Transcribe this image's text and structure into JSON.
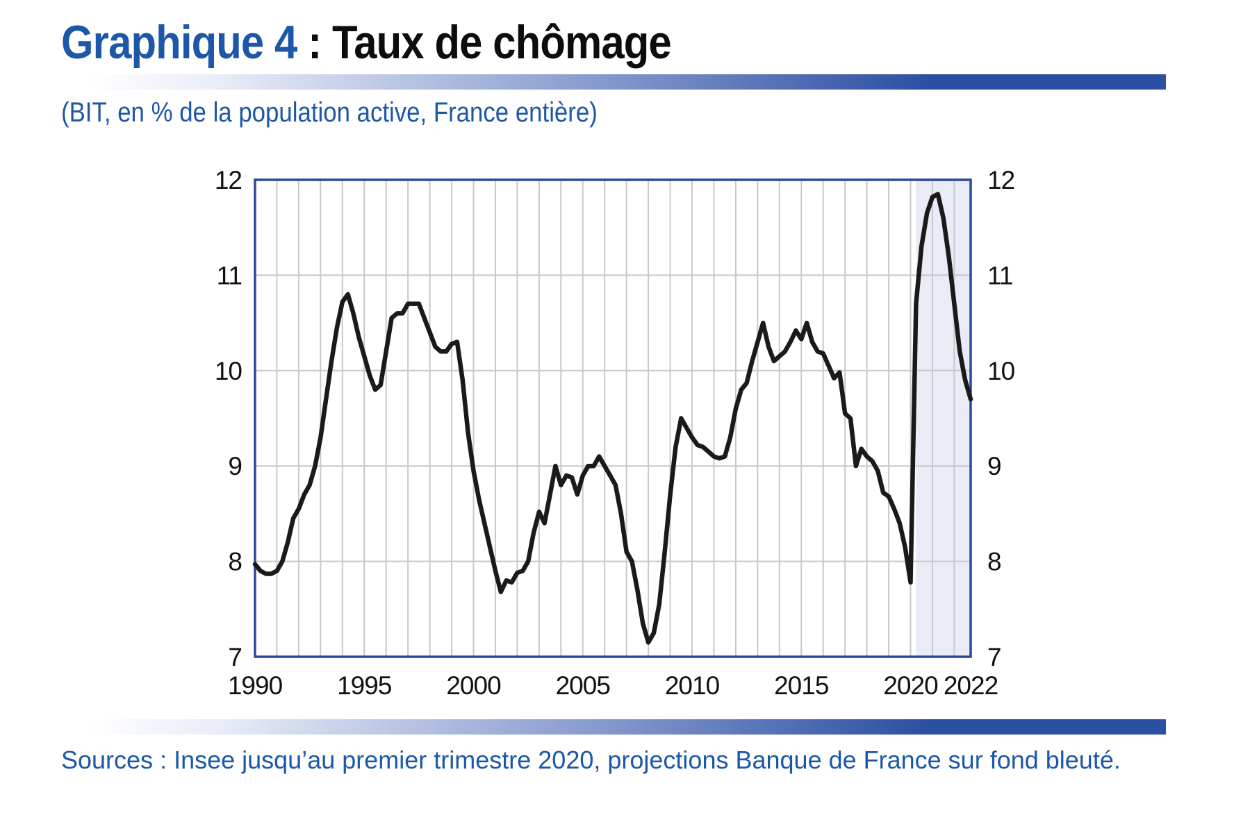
{
  "header": {
    "title_prefix": "Graphique 4",
    "title_suffix": " : Taux de chômage"
  },
  "subtitle": "(BIT, en % de la population active, France entière)",
  "sources": "Sources : Insee jusqu’au premier trimestre 2020, projections Banque de France sur fond bleuté.",
  "colors": {
    "accent_text_blue": "#1c57a8",
    "plot_border_blue": "#2a489c",
    "projection_band_fill": "#e9ebf6",
    "gridline_gray": "#c8c8c8",
    "series_line": "#1a1a1a",
    "gradient_bar_end": "#2b4fa2"
  },
  "chart_data": {
    "type": "line",
    "title": "Taux de chômage",
    "subtitle": "(BIT, en % de la population active, France entière)",
    "xlabel": "",
    "ylabel": "% de la population active",
    "xlim": [
      1990.0,
      2022.75
    ],
    "ylim": [
      7,
      12
    ],
    "grid": "on",
    "legend_position": "none",
    "projection_start": 2020.25,
    "projection_end": 2022.75,
    "x_start": 1990.0,
    "x_step": 0.25,
    "frequency": "quarterly",
    "y_ticks": [
      {
        "v": 12,
        "label": "12"
      },
      {
        "v": 11,
        "label": "11"
      },
      {
        "v": 10,
        "label": "10"
      },
      {
        "v": 9,
        "label": "9"
      },
      {
        "v": 8,
        "label": "8"
      },
      {
        "v": 7,
        "label": "7"
      }
    ],
    "x_ticks": [
      {
        "year": 1990,
        "label": "1990"
      },
      {
        "year": 1995,
        "label": "1995"
      },
      {
        "year": 2000,
        "label": "2000"
      },
      {
        "year": 2005,
        "label": "2005"
      },
      {
        "year": 2010,
        "label": "2010"
      },
      {
        "year": 2015,
        "label": "2015"
      },
      {
        "year": 2020,
        "label": "2020"
      },
      {
        "year": 2022.75,
        "label": "2022"
      }
    ],
    "values": [
      7.97,
      7.9,
      7.87,
      7.87,
      7.9,
      8.0,
      8.2,
      8.45,
      8.55,
      8.7,
      8.8,
      9.0,
      9.3,
      9.7,
      10.1,
      10.45,
      10.72,
      10.8,
      10.6,
      10.35,
      10.15,
      9.95,
      9.8,
      9.85,
      10.2,
      10.55,
      10.6,
      10.6,
      10.7,
      10.7,
      10.7,
      10.55,
      10.4,
      10.25,
      10.2,
      10.2,
      10.28,
      10.3,
      9.9,
      9.35,
      8.95,
      8.65,
      8.4,
      8.15,
      7.9,
      7.68,
      7.8,
      7.78,
      7.88,
      7.9,
      8.0,
      8.3,
      8.52,
      8.4,
      8.7,
      9.0,
      8.8,
      8.9,
      8.88,
      8.7,
      8.9,
      9.0,
      9.0,
      9.1,
      9.0,
      8.9,
      8.8,
      8.5,
      8.1,
      8.0,
      7.7,
      7.35,
      7.15,
      7.25,
      7.55,
      8.1,
      8.7,
      9.2,
      9.5,
      9.4,
      9.3,
      9.22,
      9.2,
      9.15,
      9.1,
      9.08,
      9.1,
      9.3,
      9.6,
      9.8,
      9.87,
      10.1,
      10.3,
      10.5,
      10.25,
      10.1,
      10.15,
      10.2,
      10.3,
      10.42,
      10.33,
      10.5,
      10.3,
      10.2,
      10.18,
      10.05,
      9.92,
      9.98,
      9.55,
      9.5,
      9.0,
      9.18,
      9.1,
      9.05,
      8.95,
      8.72,
      8.68,
      8.55,
      8.4,
      8.15,
      7.78,
      10.7,
      11.3,
      11.65,
      11.82,
      11.85,
      11.6,
      11.2,
      10.7,
      10.2,
      9.9,
      9.7
    ]
  }
}
